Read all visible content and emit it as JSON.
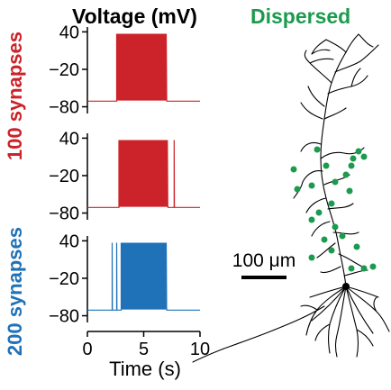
{
  "header": {
    "left_title": "Voltage (mV)",
    "right_title": "Dispersed"
  },
  "side_labels": {
    "top": "100 synapses",
    "bottom": "200 synapses"
  },
  "scale_bar": {
    "label": "100 μm"
  },
  "colors": {
    "red": "#cc2229",
    "blue": "#1f72b8",
    "green": "#1b9b4e",
    "neuron": "#000000"
  },
  "chart_data": [
    {
      "type": "line",
      "group": "100 synapses",
      "color": "#cc2229",
      "xlim": [
        0,
        10
      ],
      "ylim": [
        -85,
        42
      ],
      "yticks": [
        "40",
        "−20",
        "−80"
      ],
      "ytick_values": [
        40,
        -20,
        -80
      ],
      "rest": -71,
      "burst": {
        "start": 2.6,
        "end": 7.0,
        "peak": 37,
        "trough": -70,
        "plateau": -60
      },
      "extra_spikes": [],
      "xlabel": "",
      "ylabel": ""
    },
    {
      "type": "line",
      "group": "100 synapses",
      "color": "#cc2229",
      "xlim": [
        0,
        10
      ],
      "ylim": [
        -85,
        42
      ],
      "yticks": [
        "40",
        "−20",
        "−80"
      ],
      "ytick_values": [
        40,
        -20,
        -80
      ],
      "rest": -71,
      "burst": {
        "start": 2.8,
        "end": 7.1,
        "peak": 37,
        "trough": -70,
        "plateau": -60
      },
      "extra_spikes": [
        7.7
      ],
      "xlabel": "",
      "ylabel": ""
    },
    {
      "type": "line",
      "group": "200 synapses",
      "color": "#1f72b8",
      "xlim": [
        0,
        10
      ],
      "ylim": [
        -85,
        42
      ],
      "yticks": [
        "40",
        "−20",
        "−80"
      ],
      "ytick_values": [
        40,
        -20,
        -80
      ],
      "xticks": [
        "0",
        "5",
        "10"
      ],
      "xtick_values": [
        0,
        5,
        10
      ],
      "rest": -71,
      "burst": {
        "start": 3.0,
        "end": 7.0,
        "peak": 37,
        "trough": -70,
        "plateau": -60
      },
      "extra_spikes": [
        2.2,
        2.6
      ],
      "xlabel": "Time (s)",
      "ylabel": ""
    }
  ]
}
